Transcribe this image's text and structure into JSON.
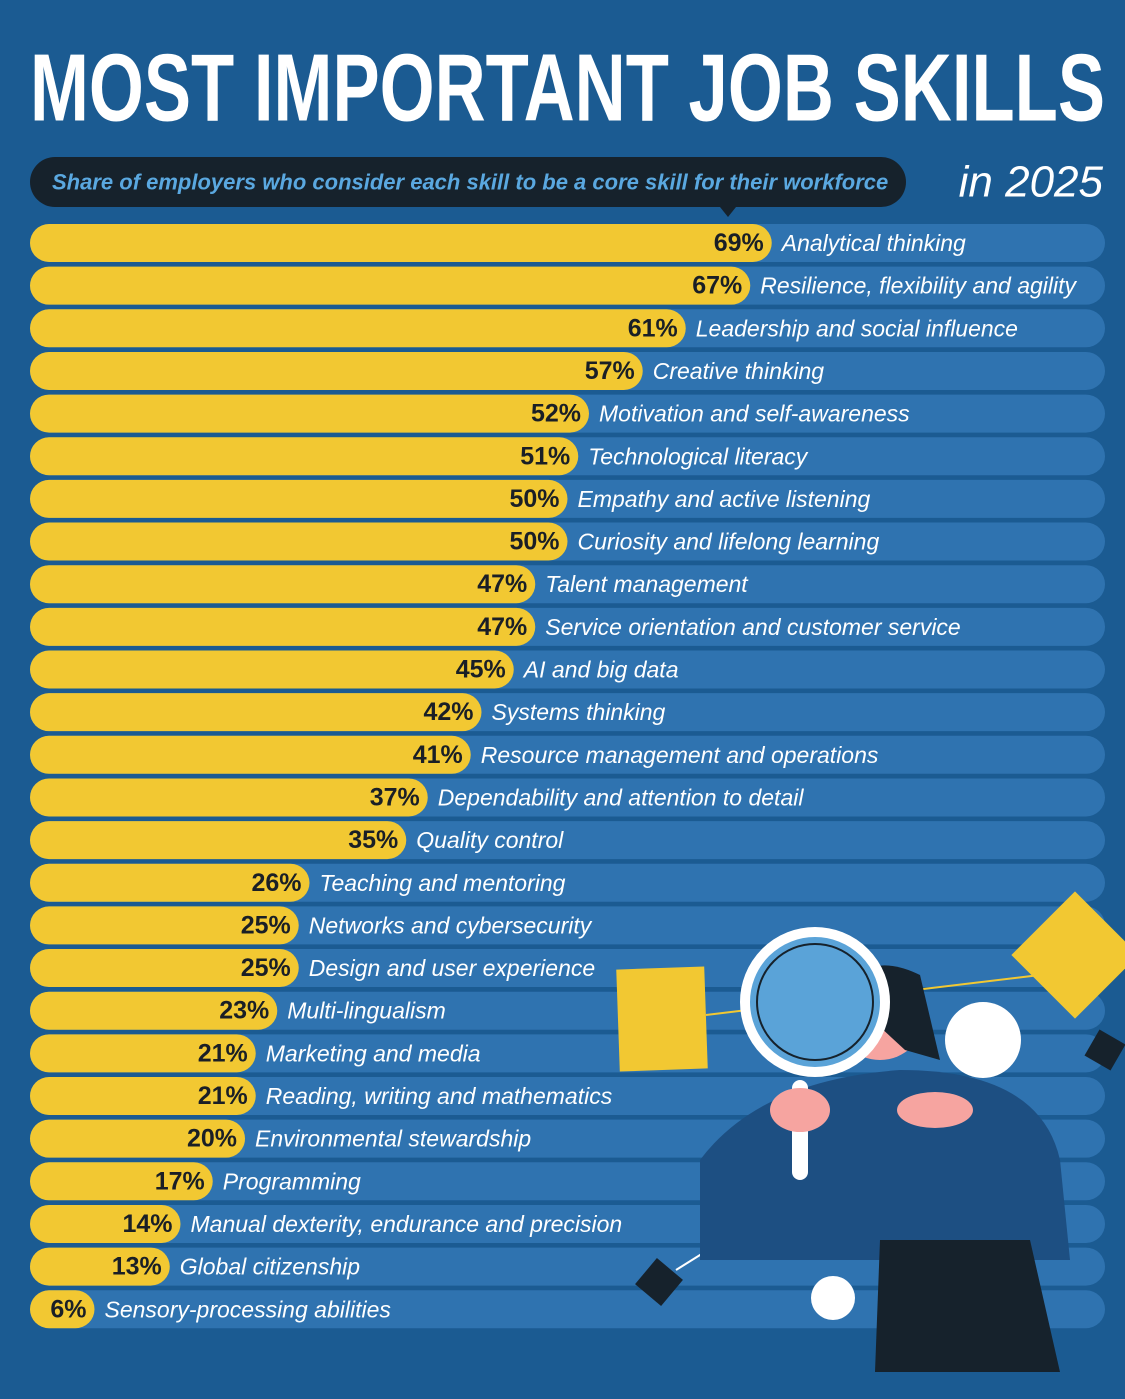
{
  "chart_data": {
    "type": "bar",
    "title": "MOST IMPORTANT JOB SKILLS",
    "subtitle": "Share of employers who consider each skill to be a core skill for their workforce",
    "annotation": "in 2025",
    "categories": [
      "Analytical thinking",
      "Resilience, flexibility and agility",
      "Leadership and social influence",
      "Creative thinking",
      "Motivation and self-awareness",
      "Technological literacy",
      "Empathy and active listening",
      "Curiosity and lifelong learning",
      "Talent management",
      "Service orientation and customer service",
      "AI and big data",
      "Systems thinking",
      "Resource management and operations",
      "Dependability and attention to detail",
      "Quality control",
      "Teaching and mentoring",
      "Networks and cybersecurity",
      "Design and user experience",
      "Multi-lingualism",
      "Marketing and media",
      "Reading, writing and mathematics",
      "Environmental stewardship",
      "Programming",
      "Manual dexterity, endurance and precision",
      "Global citizenship",
      "Sensory-processing abilities"
    ],
    "values": [
      69,
      67,
      61,
      57,
      52,
      51,
      50,
      50,
      47,
      47,
      45,
      42,
      41,
      37,
      35,
      26,
      25,
      25,
      23,
      21,
      21,
      20,
      17,
      14,
      13,
      6
    ],
    "value_labels": [
      "69%",
      "67%",
      "61%",
      "57%",
      "52%",
      "51%",
      "50%",
      "50%",
      "47%",
      "47%",
      "45%",
      "42%",
      "41%",
      "37%",
      "35%",
      "26%",
      "25%",
      "25%",
      "23%",
      "21%",
      "21%",
      "20%",
      "17%",
      "14%",
      "13%",
      "6%"
    ],
    "color": "#f2c832",
    "xlim": [
      0,
      100
    ]
  }
}
